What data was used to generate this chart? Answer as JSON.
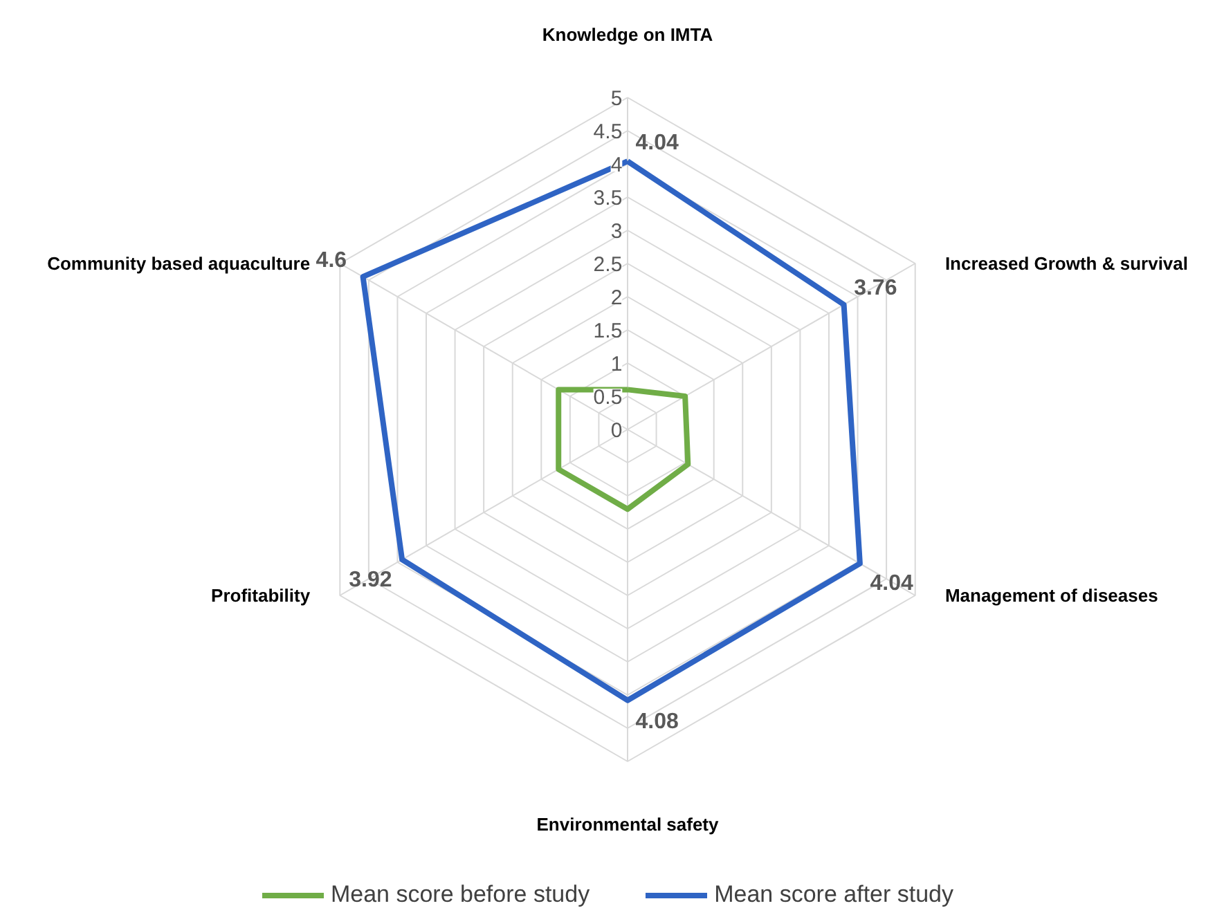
{
  "chart_data": {
    "type": "radar",
    "categories": [
      "Knowledge on IMTA",
      "Increased Growth & survival",
      "Management of diseases",
      "Environmental safety",
      "Profitability",
      "Community based aquaculture"
    ],
    "series": [
      {
        "name": "Mean score before study",
        "color": "#70ad47",
        "values": [
          0.6,
          1.0,
          1.05,
          1.2,
          1.2,
          1.2
        ]
      },
      {
        "name": "Mean score after study",
        "color": "#2f64c4",
        "values": [
          4.04,
          3.76,
          4.04,
          4.08,
          3.92,
          4.6
        ],
        "value_labels": [
          "4.04",
          "3.76",
          "4.04",
          "4.08",
          "3.92",
          "4.6"
        ]
      }
    ],
    "ylim": [
      0,
      5
    ],
    "yticks": [
      0,
      0.5,
      1,
      1.5,
      2,
      2.5,
      3,
      3.5,
      4,
      4.5,
      5
    ],
    "grid": true,
    "legend": "bottom",
    "marker": "none",
    "line_style": "solid"
  }
}
